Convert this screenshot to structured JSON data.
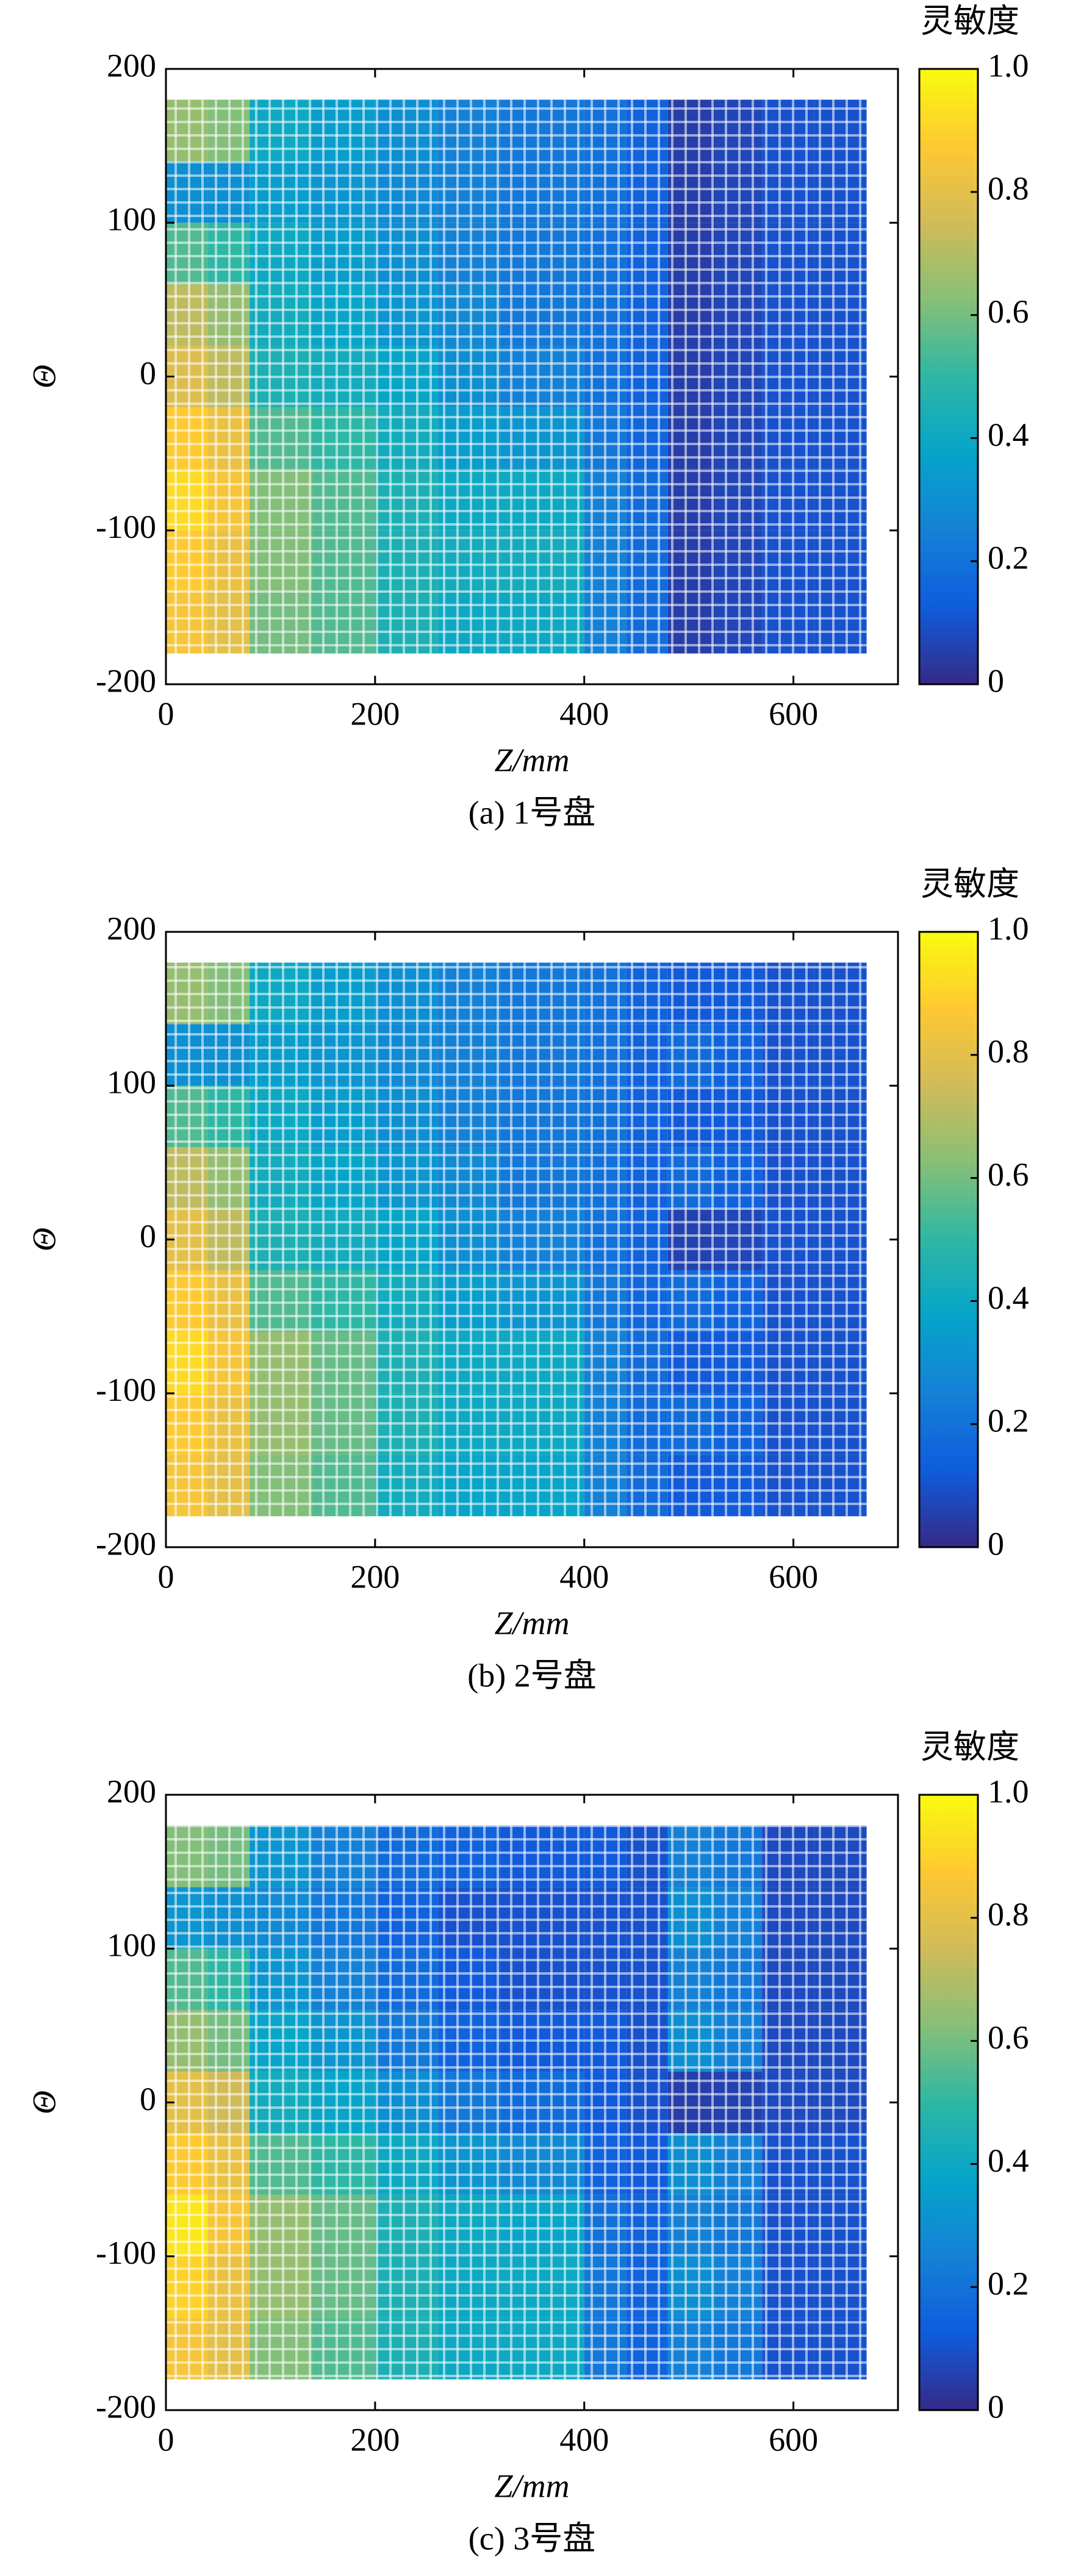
{
  "chart_data": [
    {
      "type": "heatmap",
      "caption": "(a) 1号盘",
      "xlabel": "Z/mm",
      "ylabel": "Θ",
      "colorbar_label": "灵敏度",
      "xlim": [
        0,
        700
      ],
      "xticks": [
        0,
        200,
        400,
        600
      ],
      "ylim": [
        -200,
        200
      ],
      "yticks": [
        -200,
        -100,
        0,
        100,
        200
      ],
      "clim": [
        0,
        1
      ],
      "cticks": [
        0,
        0.2,
        0.4,
        0.6,
        0.8,
        {
          "value": 1,
          "label": "1.0"
        }
      ],
      "colormap": [
        "#352a87",
        "#0f5cdd",
        "#1481d6",
        "#06a4ca",
        "#2eb7a4",
        "#87bf77",
        "#d1bb59",
        "#fec832",
        "#f9fb0e"
      ],
      "xbins": [
        0,
        40,
        80,
        140,
        200,
        260,
        320,
        400,
        440,
        480,
        525,
        570,
        620,
        670
      ],
      "ybins": [
        -180,
        -140,
        -100,
        -60,
        -20,
        20,
        60,
        100,
        140,
        180
      ],
      "values": [
        [
          0.85,
          0.8,
          0.6,
          0.55,
          0.45,
          0.4,
          0.4,
          0.25,
          0.18,
          0.05,
          0.07,
          0.1,
          0.1
        ],
        [
          0.88,
          0.82,
          0.62,
          0.55,
          0.45,
          0.42,
          0.42,
          0.25,
          0.18,
          0.05,
          0.07,
          0.1,
          0.1
        ],
        [
          0.92,
          0.85,
          0.62,
          0.55,
          0.45,
          0.4,
          0.4,
          0.25,
          0.18,
          0.05,
          0.07,
          0.1,
          0.1
        ],
        [
          0.88,
          0.82,
          0.55,
          0.5,
          0.42,
          0.35,
          0.32,
          0.22,
          0.16,
          0.05,
          0.07,
          0.1,
          0.1
        ],
        [
          0.78,
          0.72,
          0.45,
          0.42,
          0.38,
          0.3,
          0.25,
          0.2,
          0.15,
          0.05,
          0.07,
          0.1,
          0.1
        ],
        [
          0.72,
          0.65,
          0.42,
          0.38,
          0.32,
          0.28,
          0.22,
          0.2,
          0.15,
          0.05,
          0.07,
          0.1,
          0.1
        ],
        [
          0.55,
          0.5,
          0.4,
          0.35,
          0.3,
          0.25,
          0.22,
          0.2,
          0.15,
          0.05,
          0.07,
          0.1,
          0.1
        ],
        [
          0.3,
          0.3,
          0.35,
          0.32,
          0.28,
          0.25,
          0.22,
          0.2,
          0.15,
          0.05,
          0.07,
          0.1,
          0.1
        ],
        [
          0.65,
          0.62,
          0.4,
          0.35,
          0.3,
          0.25,
          0.22,
          0.2,
          0.15,
          0.05,
          0.07,
          0.1,
          0.1
        ]
      ]
    },
    {
      "type": "heatmap",
      "caption": "(b) 2号盘",
      "xlabel": "Z/mm",
      "ylabel": "Θ",
      "colorbar_label": "灵敏度",
      "xlim": [
        0,
        700
      ],
      "xticks": [
        0,
        200,
        400,
        600
      ],
      "ylim": [
        -200,
        200
      ],
      "yticks": [
        -200,
        -100,
        0,
        100,
        200
      ],
      "clim": [
        0,
        1
      ],
      "cticks": [
        0,
        0.2,
        0.4,
        0.6,
        0.8,
        {
          "value": 1,
          "label": "1.0"
        }
      ],
      "colormap": [
        "#352a87",
        "#0f5cdd",
        "#1481d6",
        "#06a4ca",
        "#2eb7a4",
        "#87bf77",
        "#d1bb59",
        "#fec832",
        "#f9fb0e"
      ],
      "xbins": [
        0,
        40,
        80,
        140,
        200,
        260,
        320,
        400,
        440,
        480,
        525,
        570,
        620,
        670
      ],
      "ybins": [
        -180,
        -140,
        -100,
        -60,
        -20,
        20,
        60,
        100,
        140,
        180
      ],
      "values": [
        [
          0.85,
          0.8,
          0.62,
          0.55,
          0.42,
          0.38,
          0.38,
          0.25,
          0.18,
          0.12,
          0.12,
          0.1,
          0.1
        ],
        [
          0.88,
          0.82,
          0.65,
          0.58,
          0.45,
          0.4,
          0.4,
          0.25,
          0.18,
          0.18,
          0.15,
          0.1,
          0.1
        ],
        [
          0.92,
          0.85,
          0.65,
          0.58,
          0.45,
          0.4,
          0.4,
          0.25,
          0.18,
          0.12,
          0.12,
          0.1,
          0.1
        ],
        [
          0.88,
          0.82,
          0.55,
          0.5,
          0.42,
          0.35,
          0.32,
          0.22,
          0.16,
          0.18,
          0.15,
          0.1,
          0.1
        ],
        [
          0.8,
          0.72,
          0.45,
          0.42,
          0.38,
          0.3,
          0.25,
          0.2,
          0.15,
          0.06,
          0.07,
          0.1,
          0.1
        ],
        [
          0.72,
          0.65,
          0.42,
          0.38,
          0.32,
          0.28,
          0.22,
          0.2,
          0.15,
          0.18,
          0.15,
          0.1,
          0.1
        ],
        [
          0.55,
          0.5,
          0.4,
          0.35,
          0.3,
          0.25,
          0.22,
          0.2,
          0.15,
          0.12,
          0.12,
          0.1,
          0.1
        ],
        [
          0.3,
          0.3,
          0.35,
          0.32,
          0.28,
          0.25,
          0.22,
          0.2,
          0.15,
          0.18,
          0.15,
          0.1,
          0.1
        ],
        [
          0.65,
          0.62,
          0.4,
          0.35,
          0.3,
          0.25,
          0.22,
          0.2,
          0.15,
          0.12,
          0.12,
          0.1,
          0.1
        ]
      ]
    },
    {
      "type": "heatmap",
      "caption": "(c) 3号盘",
      "xlabel": "Z/mm",
      "ylabel": "Θ",
      "colorbar_label": "灵敏度",
      "xlim": [
        0,
        700
      ],
      "xticks": [
        0,
        200,
        400,
        600
      ],
      "ylim": [
        -200,
        200
      ],
      "yticks": [
        -200,
        -100,
        0,
        100,
        200
      ],
      "clim": [
        0,
        1
      ],
      "cticks": [
        0,
        0.2,
        0.4,
        0.6,
        0.8,
        {
          "value": 1,
          "label": "1.0"
        }
      ],
      "colormap": [
        "#352a87",
        "#0f5cdd",
        "#1481d6",
        "#06a4ca",
        "#2eb7a4",
        "#87bf77",
        "#d1bb59",
        "#fec832",
        "#f9fb0e"
      ],
      "xbins": [
        0,
        40,
        80,
        140,
        200,
        260,
        320,
        400,
        440,
        480,
        525,
        570,
        620,
        670
      ],
      "ybins": [
        -180,
        -140,
        -100,
        -60,
        -20,
        20,
        60,
        100,
        140,
        180
      ],
      "values": [
        [
          0.85,
          0.8,
          0.62,
          0.55,
          0.45,
          0.4,
          0.4,
          0.22,
          0.15,
          0.25,
          0.22,
          0.1,
          0.1
        ],
        [
          0.9,
          0.82,
          0.65,
          0.58,
          0.45,
          0.4,
          0.4,
          0.22,
          0.15,
          0.3,
          0.25,
          0.1,
          0.1
        ],
        [
          0.95,
          0.85,
          0.65,
          0.58,
          0.45,
          0.4,
          0.38,
          0.2,
          0.15,
          0.25,
          0.22,
          0.1,
          0.1
        ],
        [
          0.88,
          0.82,
          0.55,
          0.5,
          0.4,
          0.32,
          0.28,
          0.15,
          0.12,
          0.3,
          0.25,
          0.1,
          0.1
        ],
        [
          0.8,
          0.75,
          0.42,
          0.38,
          0.3,
          0.22,
          0.18,
          0.12,
          0.1,
          0.05,
          0.06,
          0.08,
          0.08
        ],
        [
          0.65,
          0.6,
          0.38,
          0.32,
          0.22,
          0.15,
          0.12,
          0.12,
          0.1,
          0.3,
          0.25,
          0.08,
          0.08
        ],
        [
          0.55,
          0.5,
          0.32,
          0.25,
          0.18,
          0.12,
          0.1,
          0.1,
          0.1,
          0.25,
          0.22,
          0.08,
          0.08
        ],
        [
          0.32,
          0.3,
          0.28,
          0.22,
          0.15,
          0.1,
          0.1,
          0.1,
          0.1,
          0.3,
          0.25,
          0.08,
          0.08
        ],
        [
          0.62,
          0.6,
          0.32,
          0.25,
          0.18,
          0.15,
          0.12,
          0.12,
          0.1,
          0.25,
          0.22,
          0.08,
          0.08
        ]
      ]
    }
  ]
}
